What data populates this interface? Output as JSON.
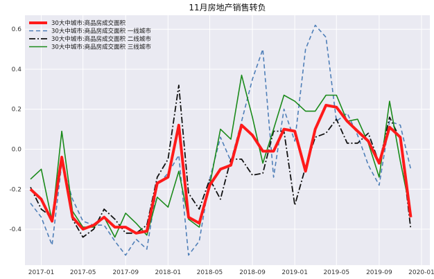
{
  "chart_data": {
    "type": "line",
    "title": "11月房地产销售转负",
    "xlabel": "",
    "ylabel": "",
    "grid": true,
    "legend_position": "top-left",
    "ylim": [
      -0.58,
      0.67
    ],
    "xlim": [
      "2016-11-15",
      "2020-01-25"
    ],
    "x_ticks": [
      {
        "date": "2017-01-01",
        "label": "2017-01"
      },
      {
        "date": "2017-05-01",
        "label": "2017-05"
      },
      {
        "date": "2017-09-01",
        "label": "2017-09"
      },
      {
        "date": "2018-01-01",
        "label": "2018-01"
      },
      {
        "date": "2018-05-01",
        "label": "2018-05"
      },
      {
        "date": "2018-09-01",
        "label": "2018-09"
      },
      {
        "date": "2019-01-01",
        "label": "2019-01"
      },
      {
        "date": "2019-05-01",
        "label": "2019-05"
      },
      {
        "date": "2019-09-01",
        "label": "2019-09"
      },
      {
        "date": "2020-01-01",
        "label": "2020-01"
      }
    ],
    "y_ticks": [
      -0.4,
      -0.2,
      0.0,
      0.2,
      0.4,
      0.6
    ],
    "y_tick_labels": [
      "-0.4",
      "-0.2",
      "0.0",
      "0.2",
      "0.4",
      "0.6"
    ],
    "x": [
      "2016-12-01",
      "2017-01-01",
      "2017-02-01",
      "2017-03-01",
      "2017-04-01",
      "2017-05-01",
      "2017-06-01",
      "2017-07-01",
      "2017-08-01",
      "2017-09-01",
      "2017-10-01",
      "2017-11-01",
      "2017-12-01",
      "2018-01-01",
      "2018-02-01",
      "2018-03-01",
      "2018-04-01",
      "2018-05-01",
      "2018-06-01",
      "2018-07-01",
      "2018-08-01",
      "2018-09-01",
      "2018-10-01",
      "2018-11-01",
      "2018-12-01",
      "2019-01-01",
      "2019-02-01",
      "2019-03-01",
      "2019-04-01",
      "2019-05-01",
      "2019-06-01",
      "2019-07-01",
      "2019-08-01",
      "2019-09-01",
      "2019-10-01",
      "2019-11-01",
      "2019-12-01"
    ],
    "series": [
      {
        "name": "30大中城市:商品房成交面积",
        "color": "#ff1a1a",
        "dash": "solid",
        "width": 4,
        "values": [
          -0.2,
          -0.25,
          -0.36,
          -0.04,
          -0.34,
          -0.4,
          -0.38,
          -0.34,
          -0.39,
          -0.39,
          -0.42,
          -0.41,
          -0.17,
          -0.14,
          0.12,
          -0.34,
          -0.37,
          -0.18,
          -0.1,
          -0.08,
          0.12,
          0.07,
          -0.01,
          -0.01,
          0.1,
          0.09,
          -0.11,
          0.1,
          0.22,
          0.21,
          0.14,
          0.09,
          0.04,
          -0.07,
          0.11,
          0.06,
          -0.34
        ]
      },
      {
        "name": "30大中城市:商品房成交面积 一线城市",
        "color": "#4f7fb8",
        "dash": "6,4",
        "width": 1.6,
        "values": [
          -0.27,
          -0.34,
          -0.48,
          -0.07,
          -0.25,
          -0.36,
          -0.38,
          -0.38,
          -0.46,
          -0.53,
          -0.45,
          -0.5,
          -0.18,
          -0.12,
          -0.03,
          -0.53,
          -0.46,
          -0.15,
          0.06,
          -0.06,
          0.14,
          0.35,
          0.5,
          -0.14,
          0.2,
          0.04,
          0.5,
          0.62,
          0.56,
          0.14,
          0.18,
          0.07,
          -0.08,
          -0.18,
          0.14,
          0.12,
          -0.1
        ]
      },
      {
        "name": "30大中城市:商品房成交面积 二线城市",
        "color": "#111111",
        "dash": "9,3,2,3",
        "width": 1.8,
        "values": [
          -0.19,
          -0.3,
          -0.34,
          -0.05,
          -0.35,
          -0.44,
          -0.4,
          -0.3,
          -0.35,
          -0.42,
          -0.42,
          -0.38,
          -0.14,
          -0.05,
          0.32,
          -0.22,
          -0.3,
          -0.15,
          -0.25,
          -0.05,
          -0.05,
          -0.13,
          -0.12,
          0.09,
          0.09,
          -0.28,
          -0.09,
          0.06,
          0.08,
          0.15,
          0.03,
          0.03,
          0.08,
          -0.07,
          0.16,
          0.05,
          -0.4
        ]
      },
      {
        "name": "30大中城市:商品房成交面积 三线城市",
        "color": "#1a8a1a",
        "dash": "solid",
        "width": 1.6,
        "values": [
          -0.15,
          -0.1,
          -0.36,
          0.09,
          -0.31,
          -0.39,
          -0.39,
          -0.34,
          -0.44,
          -0.32,
          -0.37,
          -0.43,
          -0.24,
          -0.29,
          -0.11,
          -0.35,
          -0.39,
          -0.18,
          0.1,
          0.05,
          0.37,
          0.16,
          -0.07,
          0.1,
          0.27,
          0.24,
          0.19,
          0.19,
          0.27,
          0.27,
          0.14,
          0.15,
          0.03,
          -0.14,
          0.24,
          -0.06,
          -0.32
        ]
      }
    ]
  }
}
